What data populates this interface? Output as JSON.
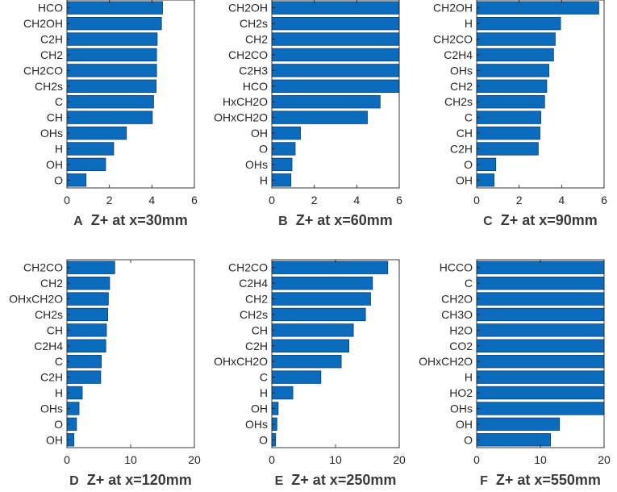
{
  "chart_data": [
    {
      "type": "bar",
      "orientation": "horizontal",
      "panel_letter": "A",
      "title": "Z+ at x=30mm",
      "categories": [
        "HCO",
        "CH2OH",
        "C2H",
        "CH2",
        "CH2CO",
        "CH2s",
        "C",
        "CH",
        "OHs",
        "H",
        "OH",
        "O"
      ],
      "values": [
        4.5,
        4.45,
        4.25,
        4.22,
        4.22,
        4.2,
        4.08,
        4.02,
        2.8,
        2.2,
        1.82,
        0.9
      ],
      "xlim": [
        0,
        6
      ],
      "xticks": [
        0,
        2,
        4,
        6
      ],
      "xlabel": "",
      "ylabel": ""
    },
    {
      "type": "bar",
      "orientation": "horizontal",
      "panel_letter": "B",
      "title": "Z+ at x=60mm",
      "categories": [
        "CH2OH",
        "CH2s",
        "CH2",
        "CH2CO",
        "C2H3",
        "HCO",
        "HxCH2O",
        "OHxCH2O",
        "OH",
        "O",
        "OHs",
        "H"
      ],
      "values": [
        6,
        6,
        6,
        6,
        6,
        6,
        5.1,
        4.5,
        1.35,
        1.1,
        0.95,
        0.9
      ],
      "xlim": [
        0,
        6
      ],
      "xticks": [
        0,
        2,
        4,
        6
      ],
      "xlabel": "",
      "ylabel": ""
    },
    {
      "type": "bar",
      "orientation": "horizontal",
      "panel_letter": "C",
      "title": "Z+ at x=90mm",
      "categories": [
        "CH2OH",
        "H",
        "CH2CO",
        "C2H4",
        "OHs",
        "CH2",
        "CH2s",
        "C",
        "CH",
        "C2H",
        "O",
        "OH"
      ],
      "values": [
        5.75,
        3.95,
        3.7,
        3.62,
        3.4,
        3.3,
        3.2,
        3.02,
        2.98,
        2.9,
        0.9,
        0.82
      ],
      "xlim": [
        0,
        6
      ],
      "xticks": [
        0,
        2,
        4,
        6
      ],
      "xlabel": "",
      "ylabel": ""
    },
    {
      "type": "bar",
      "orientation": "horizontal",
      "panel_letter": "D",
      "title": "Z+ at x=120mm",
      "categories": [
        "CH2CO",
        "CH2",
        "OHxCH2O",
        "CH2s",
        "CH",
        "C2H4",
        "C",
        "C2H",
        "H",
        "OHs",
        "O",
        "OH"
      ],
      "values": [
        7.5,
        6.7,
        6.5,
        6.4,
        6.2,
        6.1,
        5.4,
        5.3,
        2.4,
        1.9,
        1.5,
        1.1
      ],
      "xlim": [
        0,
        20
      ],
      "xticks": [
        0,
        10,
        20
      ],
      "xlabel": "",
      "ylabel": ""
    },
    {
      "type": "bar",
      "orientation": "horizontal",
      "panel_letter": "E",
      "title": "Z+ at x=250mm",
      "categories": [
        "CH2CO",
        "C2H4",
        "CH2",
        "CH2s",
        "CH",
        "C2H",
        "OHxCH2O",
        "C",
        "H",
        "OH",
        "OHs",
        "O"
      ],
      "values": [
        18.2,
        15.8,
        15.5,
        14.7,
        12.8,
        12.1,
        10.9,
        7.7,
        3.3,
        1.0,
        0.8,
        0.6
      ],
      "xlim": [
        0,
        20
      ],
      "xticks": [
        0,
        10,
        20
      ],
      "xlabel": "",
      "ylabel": ""
    },
    {
      "type": "bar",
      "orientation": "horizontal",
      "panel_letter": "F",
      "title": "Z+ at x=550mm",
      "categories": [
        "HCCO",
        "C",
        "CH2O",
        "CH3O",
        "H2O",
        "CO2",
        "OHxCH2O",
        "H",
        "HO2",
        "OHs",
        "OH",
        "O"
      ],
      "values": [
        20,
        20,
        20,
        20,
        20,
        20,
        20,
        20,
        20,
        20,
        13.0,
        11.6
      ],
      "xlim": [
        0,
        20
      ],
      "xticks": [
        0,
        10,
        20
      ],
      "xlabel": "",
      "ylabel": ""
    }
  ],
  "style": {
    "bar_color": "#0b6bbd",
    "bar_edge_color": "#0a3e72",
    "axis_color": "#262626",
    "title_color": "#3a3a3a"
  }
}
